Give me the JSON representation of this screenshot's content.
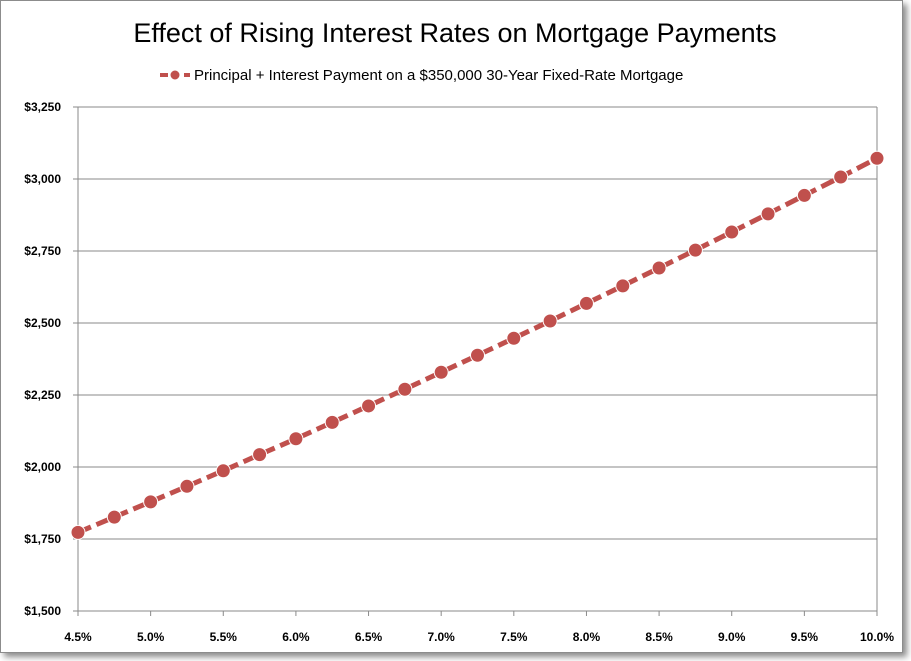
{
  "chart_data": {
    "type": "line",
    "title": "Effect of Rising Interest Rates on Mortgage Payments",
    "xlabel": "",
    "ylabel": "",
    "x": [
      "4.5%",
      "4.75%",
      "5.0%",
      "5.25%",
      "5.5%",
      "5.75%",
      "6.0%",
      "6.25%",
      "6.5%",
      "6.75%",
      "7.0%",
      "7.25%",
      "7.5%",
      "7.75%",
      "8.0%",
      "8.25%",
      "8.5%",
      "8.75%",
      "9.0%",
      "9.25%",
      "9.5%",
      "9.75%",
      "10.0%"
    ],
    "x_ticks": [
      "4.5%",
      "5.0%",
      "5.5%",
      "6.0%",
      "6.5%",
      "7.0%",
      "7.5%",
      "8.0%",
      "8.5%",
      "9.0%",
      "9.5%",
      "10.0%"
    ],
    "y_ticks": [
      "$1,500",
      "$1,750",
      "$2,000",
      "$2,250",
      "$2,500",
      "$2,750",
      "$3,000",
      "$3,250"
    ],
    "ylim": [
      1500,
      3250
    ],
    "grid": true,
    "legend_position": "top",
    "series": [
      {
        "name": "Principal + Interest Payment on a $350,000 30-Year Fixed-Rate Mortgage",
        "color": "#c0504d",
        "values": [
          1773,
          1826,
          1879,
          1933,
          1987,
          2043,
          2098,
          2155,
          2212,
          2270,
          2329,
          2388,
          2447,
          2507,
          2568,
          2629,
          2691,
          2753,
          2816,
          2879,
          2943,
          3007,
          3072
        ]
      }
    ]
  }
}
